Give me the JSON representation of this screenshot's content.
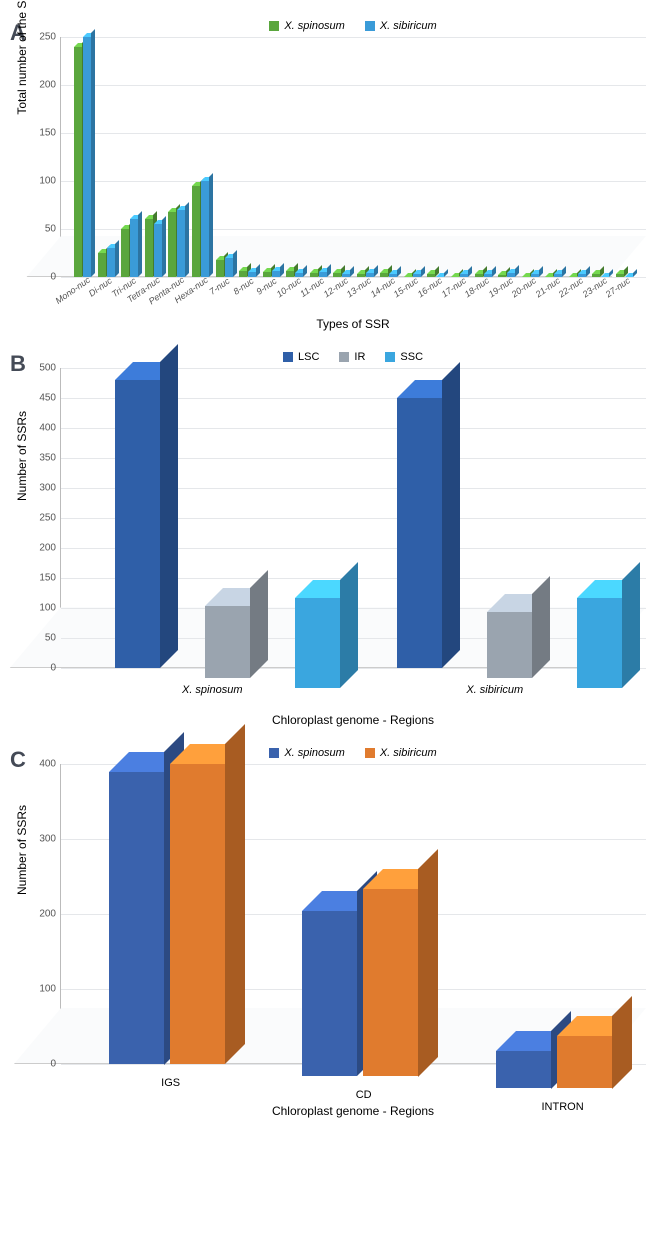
{
  "panelA": {
    "label": "A",
    "type": "bar",
    "ylabel": "Total number of the SSRs",
    "xlabel": "Types of SSR",
    "ylim": [
      0,
      250
    ],
    "ytick_step": 50,
    "legend": [
      {
        "label": "X. spinosum",
        "color": "#5aa63d"
      },
      {
        "label": "X. sibiricum",
        "color": "#3a9bd8"
      }
    ],
    "categories": [
      "Mono-nuc",
      "Di-nuc",
      "Tri-nuc",
      "Tetra-nuc",
      "Penta-nuc",
      "Hexa-nuc",
      "7-nuc",
      "8-nuc",
      "9-nuc",
      "10-nuc",
      "11-nuc",
      "12-nuc",
      "13-nuc",
      "14-nuc",
      "15-nuc",
      "16-nuc",
      "17-nuc",
      "18-nuc",
      "19-nuc",
      "20-nuc",
      "21-nuc",
      "22-nuc",
      "23-nuc",
      "27-nuc"
    ],
    "series": {
      "spinosum": [
        240,
        25,
        50,
        60,
        68,
        95,
        18,
        6,
        5,
        6,
        4,
        4,
        3,
        4,
        0,
        3,
        0,
        3,
        2,
        0,
        0,
        0,
        3,
        3
      ],
      "sibiricum": [
        250,
        30,
        60,
        55,
        70,
        100,
        20,
        5,
        6,
        4,
        5,
        3,
        4,
        3,
        3,
        0,
        3,
        3,
        4,
        3,
        3,
        3,
        0,
        0
      ]
    },
    "colors": {
      "spinosum": "#5aa63d",
      "sibiricum": "#3a9bd8"
    },
    "label_fontsize": 12,
    "tick_fontsize": 10,
    "background_color": "#ffffff",
    "grid_color": "#e5e7ea"
  },
  "panelB": {
    "label": "B",
    "type": "bar",
    "ylabel": "Number of SSRs",
    "xlabel": "Chloroplast genome - Regions",
    "ylim": [
      0,
      500
    ],
    "ytick_step": 50,
    "legend": [
      {
        "label": "LSC",
        "color": "#2f5fa8"
      },
      {
        "label": "IR",
        "color": "#9aa4af"
      },
      {
        "label": "SSC",
        "color": "#3aa6df"
      }
    ],
    "categories": [
      "X. spinosum",
      "X. sibiricum"
    ],
    "series": {
      "LSC": [
        480,
        450
      ],
      "IR": [
        120,
        110
      ],
      "SSC": [
        150,
        150
      ]
    },
    "colors": {
      "LSC": "#2f5fa8",
      "IR": "#9aa4af",
      "SSC": "#3aa6df"
    },
    "label_fontsize": 12,
    "background_color": "#ffffff",
    "grid_color": "#e5e7ea"
  },
  "panelC": {
    "label": "C",
    "type": "bar",
    "ylabel": "Number of SSRs",
    "xlabel": "Chloroplast genome - Regions",
    "ylim": [
      0,
      400
    ],
    "ytick_step": 100,
    "legend": [
      {
        "label": "X. spinosum",
        "color": "#3a62ad"
      },
      {
        "label": "X. sibiricum",
        "color": "#e07b2e"
      }
    ],
    "categories": [
      "IGS",
      "CD",
      "INTRON"
    ],
    "series": {
      "spinosum": [
        390,
        220,
        50
      ],
      "sibiricum": [
        400,
        250,
        70
      ]
    },
    "colors": {
      "spinosum": "#3a62ad",
      "sibiricum": "#e07b2e"
    },
    "label_fontsize": 12,
    "background_color": "#ffffff",
    "grid_color": "#e5e7ea"
  }
}
